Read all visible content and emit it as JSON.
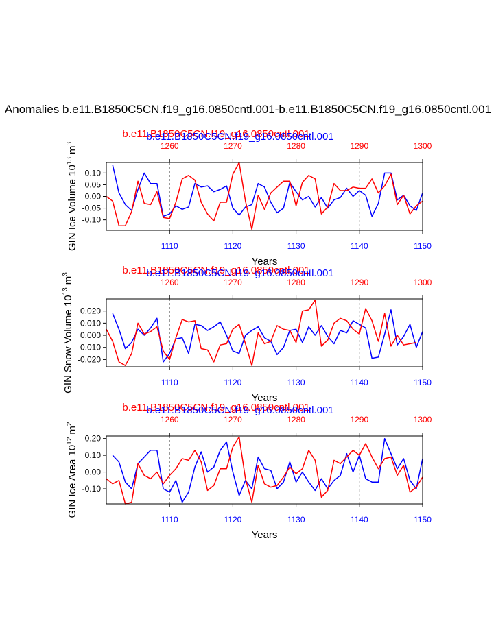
{
  "main_title": "Anomalies b.e11.B1850C5CN.f19_g16.0850cntl.001-b.e11.B1850C5CN.f19_g16.0850cntl.001",
  "colors": {
    "blue": "#0000ff",
    "red": "#ff0000",
    "axis": "#000000",
    "gridline": "#555555"
  },
  "chart_data": [
    {
      "type": "line",
      "title_blue": "b.e11.B1850C5CN.f19_g16.0850cntl.001",
      "title_red": "b.e11.B1850C5CN.f19_g16.0850cntl.001",
      "ylabel": "GIN Ice Volume 10",
      "ylabel_exp": "13",
      "ylabel_unit": "m",
      "ylabel_unit_exp": "3",
      "xlabel": "Years",
      "ylim": [
        -0.145,
        0.145
      ],
      "yticks": [
        -0.1,
        -0.05,
        0.0,
        0.05,
        0.1
      ],
      "ytick_labels": [
        "-0.10",
        "-0.05",
        "0.00",
        "0.05",
        "0.10"
      ],
      "x_bottom": {
        "label": "Years",
        "range": [
          1100,
          1150
        ],
        "ticks": [
          1110,
          1120,
          1130,
          1140,
          1150
        ],
        "tick_labels": [
          "1110",
          "1120",
          "1130",
          "1140",
          "1150"
        ]
      },
      "x_top": {
        "range": [
          1250,
          1300
        ],
        "ticks": [
          1260,
          1270,
          1280,
          1290,
          1300
        ],
        "tick_labels": [
          "1260",
          "1270",
          "1280",
          "1290",
          "1300"
        ]
      },
      "series": [
        {
          "name": "b.e11.B1850C5CN.f19_g16.0850cntl.001",
          "color": "blue",
          "axis": "bottom",
          "values": [
            0.135,
            0.015,
            -0.035,
            -0.06,
            0.03,
            0.1,
            0.055,
            0.055,
            -0.085,
            -0.075,
            -0.04,
            -0.055,
            -0.045,
            0.055,
            0.04,
            0.045,
            0.02,
            0.03,
            0.045,
            -0.05,
            -0.08,
            -0.045,
            -0.035,
            0.055,
            0.04,
            -0.025,
            -0.07,
            -0.05,
            0.06,
            0.02,
            -0.015,
            0.0,
            -0.045,
            -0.005,
            -0.05,
            -0.015,
            -0.005,
            0.035,
            0.0,
            0.025,
            0.005,
            -0.085,
            -0.03,
            0.1,
            0.1,
            -0.015,
            0.005,
            -0.04,
            -0.06,
            0.015
          ]
        },
        {
          "name": "b.e11.B1850C5CN.f19_g16.0850cntl.001",
          "color": "red",
          "axis": "top",
          "values": [
            0.0,
            -0.02,
            -0.125,
            -0.125,
            -0.065,
            0.065,
            -0.03,
            -0.035,
            0.02,
            -0.09,
            -0.095,
            -0.025,
            0.075,
            0.09,
            0.07,
            -0.025,
            -0.075,
            -0.105,
            -0.025,
            -0.025,
            0.095,
            0.145,
            -0.02,
            -0.14,
            0.005,
            -0.055,
            0.015,
            0.04,
            0.065,
            0.065,
            -0.04,
            0.06,
            0.09,
            0.075,
            -0.075,
            -0.045,
            0.055,
            0.025,
            0.025,
            0.04,
            0.035,
            0.035,
            0.075,
            0.015,
            0.045,
            0.095,
            -0.035,
            0.005,
            -0.075,
            -0.04,
            -0.02
          ]
        }
      ]
    },
    {
      "type": "line",
      "title_blue": "b.e11.B1850C5CN.f19_g16.0850cntl.001",
      "title_red": "b.e11.B1850C5CN.f19_g16.0850cntl.001",
      "ylabel": "GIN Snow Volume 10",
      "ylabel_exp": "13",
      "ylabel_unit": "m",
      "ylabel_unit_exp": "3",
      "xlabel": "Years",
      "ylim": [
        -0.026,
        0.03
      ],
      "yticks": [
        -0.02,
        -0.01,
        0.0,
        0.01,
        0.02
      ],
      "ytick_labels": [
        "-0.020",
        "-0.010",
        "0.000",
        "0.010",
        "0.020"
      ],
      "x_bottom": {
        "label": "Years",
        "range": [
          1100,
          1150
        ],
        "ticks": [
          1110,
          1120,
          1130,
          1140,
          1150
        ],
        "tick_labels": [
          "1110",
          "1120",
          "1130",
          "1140",
          "1150"
        ]
      },
      "x_top": {
        "range": [
          1250,
          1300
        ],
        "ticks": [
          1260,
          1270,
          1280,
          1290,
          1300
        ],
        "tick_labels": [
          "1260",
          "1270",
          "1280",
          "1290",
          "1300"
        ]
      },
      "series": [
        {
          "name": "b.e11.B1850C5CN.f19_g16.0850cntl.001",
          "color": "blue",
          "axis": "bottom",
          "values": [
            0.018,
            0.005,
            -0.011,
            -0.006,
            0.005,
            0.0,
            0.006,
            0.014,
            -0.022,
            -0.015,
            -0.003,
            -0.002,
            -0.015,
            0.009,
            0.008,
            0.004,
            0.007,
            0.011,
            0.0,
            -0.013,
            -0.015,
            0.0,
            0.004,
            0.007,
            -0.002,
            -0.005,
            -0.016,
            -0.01,
            0.004,
            0.005,
            -0.006,
            0.007,
            0.0,
            0.008,
            -0.001,
            -0.007,
            0.004,
            0.002,
            0.012,
            0.009,
            0.006,
            -0.019,
            -0.018,
            0.001,
            0.021,
            -0.008,
            -0.001,
            0.009,
            -0.01,
            0.003
          ]
        },
        {
          "name": "b.e11.B1850C5CN.f19_g16.0850cntl.001",
          "color": "red",
          "axis": "top",
          "values": [
            0.005,
            -0.005,
            -0.022,
            -0.025,
            -0.015,
            0.01,
            0.001,
            0.003,
            0.007,
            -0.013,
            -0.02,
            -0.002,
            0.013,
            0.011,
            0.012,
            -0.011,
            -0.012,
            -0.022,
            -0.008,
            -0.007,
            0.005,
            0.009,
            -0.007,
            -0.025,
            0.002,
            -0.007,
            -0.005,
            0.008,
            0.005,
            0.004,
            -0.006,
            0.02,
            0.021,
            0.029,
            -0.009,
            -0.004,
            0.01,
            0.014,
            0.012,
            0.005,
            0.001,
            0.022,
            0.012,
            -0.005,
            0.018,
            -0.009,
            0.0,
            -0.008,
            -0.007,
            -0.006
          ]
        }
      ]
    },
    {
      "type": "line",
      "title_blue": "b.e11.B1850C5CN.f19_g16.0850cntl.001",
      "title_red": "b.e11.B1850C5CN.f19_g16.0850cntl.001",
      "ylabel": "GIN Ice Area 10",
      "ylabel_exp": "12",
      "ylabel_unit": "m",
      "ylabel_unit_exp": "2",
      "xlabel": "Years",
      "ylim": [
        -0.19,
        0.215
      ],
      "yticks": [
        -0.1,
        0.0,
        0.1,
        0.2
      ],
      "ytick_labels": [
        "-0.10",
        "0.00",
        "0.10",
        "0.20"
      ],
      "x_bottom": {
        "label": "Years",
        "range": [
          1100,
          1150
        ],
        "ticks": [
          1110,
          1120,
          1130,
          1140,
          1150
        ],
        "tick_labels": [
          "1110",
          "1120",
          "1130",
          "1140",
          "1150"
        ]
      },
      "x_top": {
        "range": [
          1250,
          1300
        ],
        "ticks": [
          1260,
          1270,
          1280,
          1290,
          1300
        ],
        "tick_labels": [
          "1260",
          "1270",
          "1280",
          "1290",
          "1300"
        ]
      },
      "series": [
        {
          "name": "b.e11.B1850C5CN.f19_g16.0850cntl.001",
          "color": "blue",
          "axis": "bottom",
          "values": [
            0.1,
            0.06,
            -0.06,
            -0.1,
            0.05,
            0.09,
            0.13,
            0.13,
            -0.1,
            -0.12,
            -0.05,
            -0.18,
            -0.12,
            0.03,
            0.12,
            0.0,
            0.03,
            0.13,
            0.18,
            0.0,
            -0.14,
            -0.05,
            -0.1,
            0.09,
            0.02,
            0.01,
            -0.1,
            -0.06,
            0.06,
            -0.06,
            0.0,
            -0.06,
            -0.11,
            -0.04,
            -0.1,
            -0.05,
            -0.02,
            0.11,
            0.0,
            0.1,
            -0.04,
            -0.06,
            -0.06,
            0.2,
            0.11,
            0.02,
            0.08,
            -0.05,
            -0.1,
            0.08
          ]
        },
        {
          "name": "b.e11.B1850C5CN.f19_g16.0850cntl.001",
          "color": "red",
          "axis": "top",
          "values": [
            -0.04,
            -0.07,
            -0.05,
            -0.19,
            -0.18,
            0.05,
            -0.02,
            -0.04,
            0.0,
            -0.07,
            -0.02,
            0.02,
            0.08,
            0.07,
            0.13,
            0.06,
            -0.11,
            -0.08,
            0.02,
            0.02,
            0.15,
            0.21,
            -0.04,
            -0.18,
            0.04,
            -0.07,
            -0.09,
            -0.08,
            -0.03,
            0.03,
            -0.01,
            0.02,
            0.13,
            0.07,
            -0.15,
            -0.11,
            0.07,
            0.05,
            0.09,
            0.13,
            0.1,
            0.17,
            0.09,
            0.02,
            0.08,
            0.09,
            -0.02,
            0.04,
            -0.12,
            -0.09,
            -0.03
          ]
        }
      ]
    }
  ]
}
